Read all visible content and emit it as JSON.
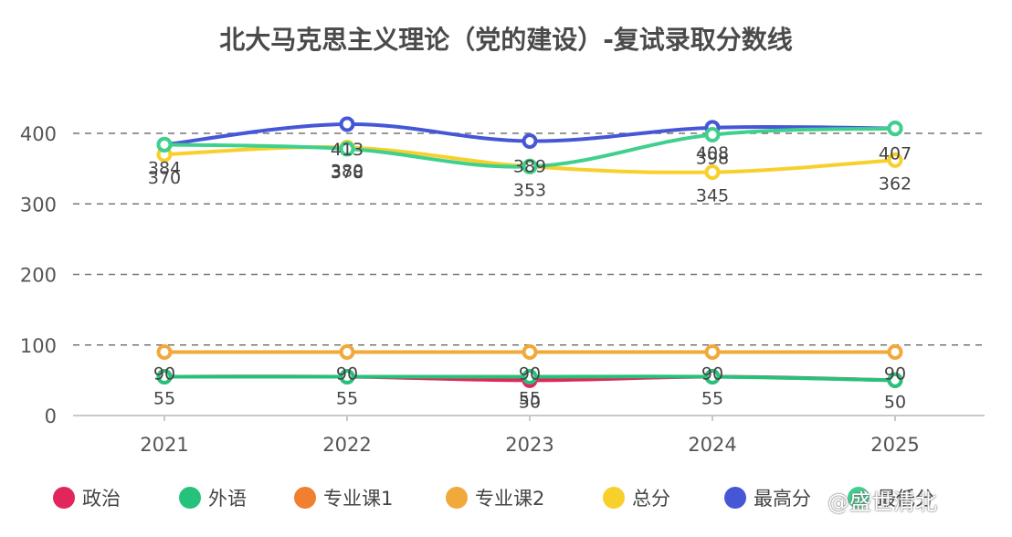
{
  "chart_data": {
    "type": "line",
    "title": "北大马克思主义理论（党的建设）-复试录取分数线",
    "categories": [
      "2021",
      "2022",
      "2023",
      "2024",
      "2025"
    ],
    "ylim": [
      0,
      400
    ],
    "yticks": [
      0,
      100,
      200,
      300,
      400
    ],
    "grid": true,
    "legend_position": "bottom",
    "series": [
      {
        "name": "政治",
        "color": "#e0265a",
        "values": [
          55,
          55,
          50,
          55,
          50
        ],
        "labels": [
          "",
          "",
          "50",
          "",
          ""
        ]
      },
      {
        "name": "外语",
        "color": "#26c27c",
        "values": [
          55,
          55,
          55,
          55,
          50
        ],
        "labels": [
          "55",
          "55",
          "55",
          "55",
          "50"
        ]
      },
      {
        "name": "专业课1",
        "color": "#f08030",
        "values": [
          90,
          90,
          90,
          90,
          90
        ],
        "labels": [
          "",
          "",
          "",
          "",
          ""
        ]
      },
      {
        "name": "专业课2",
        "color": "#f2a93b",
        "values": [
          90,
          90,
          90,
          90,
          90
        ],
        "labels": [
          "90",
          "90",
          "90",
          "90",
          "90"
        ]
      },
      {
        "name": "总分",
        "color": "#f7d02c",
        "values": [
          370,
          380,
          353,
          345,
          362
        ],
        "labels": [
          "370",
          "380",
          "",
          "345",
          "362"
        ]
      },
      {
        "name": "最高分",
        "color": "#4657d6",
        "values": [
          384,
          413,
          389,
          408,
          407
        ],
        "labels": [
          "",
          "413",
          "389",
          "408",
          "407"
        ]
      },
      {
        "name": "最低分",
        "color": "#3fd08e",
        "values": [
          384,
          378,
          353,
          398,
          407
        ],
        "labels": [
          "384",
          "378",
          "353",
          "398",
          ""
        ]
      }
    ]
  },
  "watermark": "@盛世清北"
}
